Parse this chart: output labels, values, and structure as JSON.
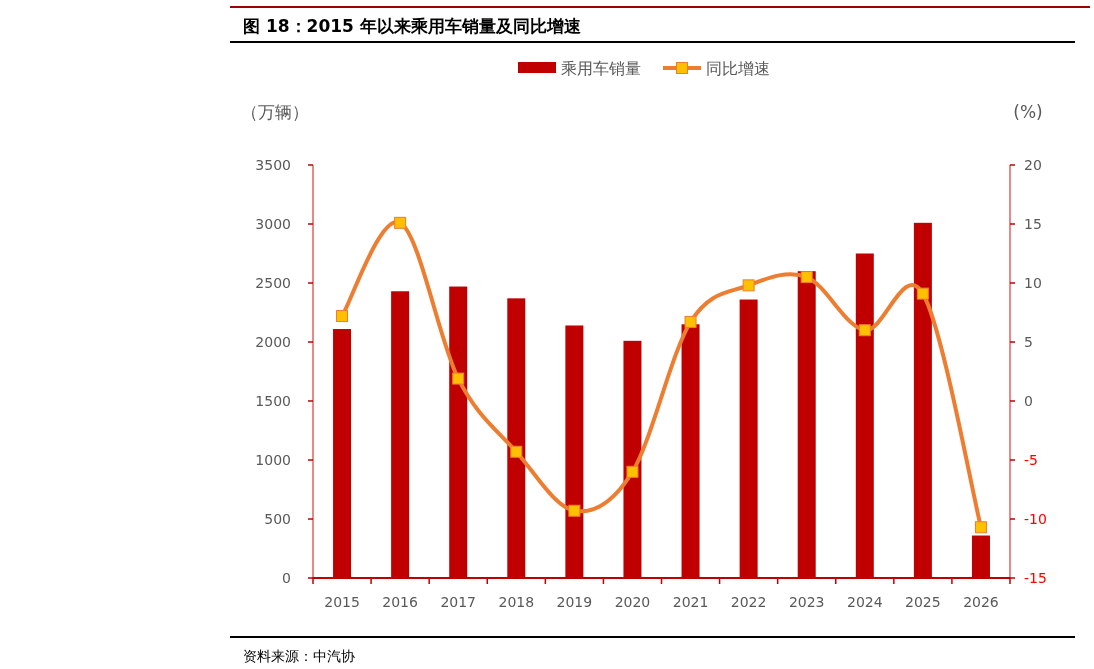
{
  "chart_data": {
    "type": "bar",
    "title": "图 18：2015 年以来乘用车销量及同比增速",
    "ylabel": "（万辆）",
    "y2label": "(%)",
    "categories": [
      "2015",
      "2016",
      "2017",
      "2018",
      "2019",
      "2020",
      "2021",
      "2022",
      "2023",
      "2024",
      "2025",
      "2026"
    ],
    "series": [
      {
        "name": "乘用车销量",
        "color": "#c00000",
        "values": [
          2110,
          2430,
          2470,
          2370,
          2140,
          2010,
          2150,
          2360,
          2600,
          2750,
          3010,
          360
        ]
      },
      {
        "name": "同比增速",
        "type": "line",
        "axis": "y2",
        "color": "#ed7d31",
        "marker": "square",
        "values": [
          7.2,
          15.1,
          1.9,
          -4.3,
          -9.3,
          -6.0,
          6.7,
          9.8,
          10.5,
          6.0,
          9.1,
          -10.7
        ]
      }
    ],
    "ylim": [
      0,
      3500
    ],
    "yticks": [
      0,
      500,
      1000,
      1500,
      2000,
      2500,
      3000,
      3500
    ],
    "y2lim": [
      -15,
      20
    ],
    "y2ticks": [
      -15,
      -10,
      -5,
      0,
      5,
      10,
      15,
      20
    ],
    "grid": false,
    "legend": "top",
    "annotations": [
      "资料来源：中汽协"
    ]
  }
}
